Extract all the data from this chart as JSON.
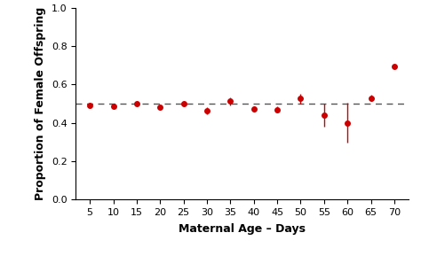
{
  "x": [
    5,
    10,
    15,
    20,
    25,
    30,
    35,
    40,
    45,
    50,
    55,
    60,
    65,
    70
  ],
  "y": [
    0.49,
    0.488,
    0.502,
    0.481,
    0.5,
    0.464,
    0.512,
    0.472,
    0.47,
    0.527,
    0.44,
    0.4,
    0.53,
    0.692
  ],
  "yerr_low": [
    0.015,
    0.012,
    0.012,
    0.012,
    0.012,
    0.018,
    0.02,
    0.013,
    0.018,
    0.025,
    0.058,
    0.105,
    0.015,
    0.0
  ],
  "yerr_high": [
    0.015,
    0.012,
    0.012,
    0.012,
    0.012,
    0.018,
    0.02,
    0.013,
    0.018,
    0.025,
    0.058,
    0.105,
    0.015,
    0.0
  ],
  "hline_y": 0.502,
  "point_color": "#cc0000",
  "line_color": "#555555",
  "xlabel": "Maternal Age – Days",
  "ylabel": "Proportion of Female Offspring",
  "xlim": [
    2,
    73
  ],
  "ylim": [
    0.0,
    1.0
  ],
  "xticks": [
    5,
    10,
    15,
    20,
    25,
    30,
    35,
    40,
    45,
    50,
    55,
    60,
    65,
    70
  ],
  "yticks": [
    0.0,
    0.2,
    0.4,
    0.6,
    0.8,
    1.0
  ],
  "marker_size": 5,
  "capsize": 2.5,
  "dpi": 100
}
